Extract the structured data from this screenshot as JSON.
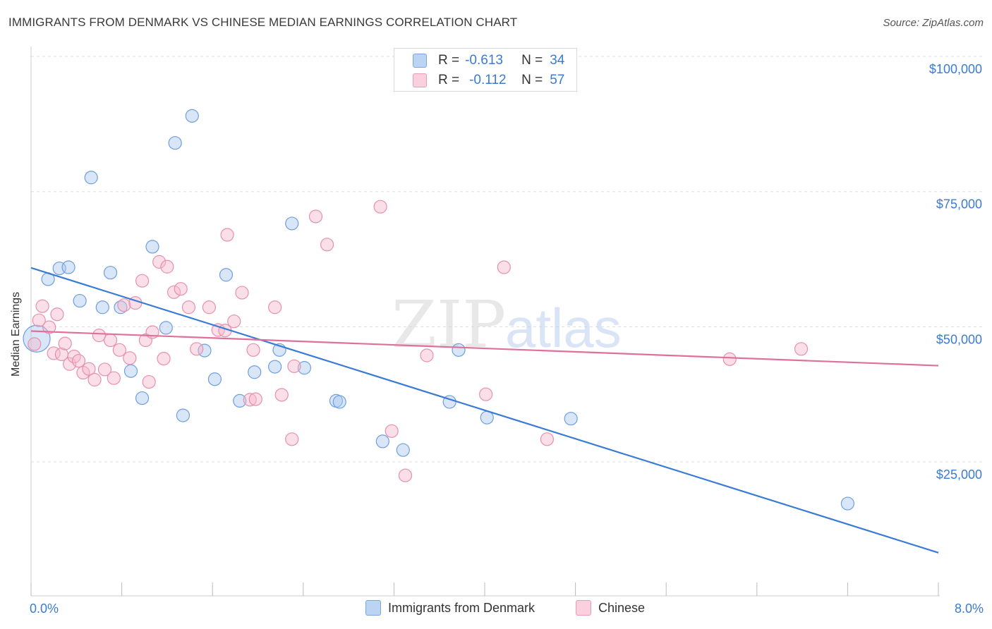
{
  "title": "IMMIGRANTS FROM DENMARK VS CHINESE MEDIAN EARNINGS CORRELATION CHART",
  "source": "Source: ZipAtlas.com",
  "colors": {
    "blue": "#3a7bd5",
    "pink": "#e0709a",
    "blue_fill": "#a9c8f0",
    "pink_fill": "#f7b8cc",
    "axis_label": "#3a7bd5"
  },
  "legend_top": {
    "rows": [
      {
        "r_label": "R =",
        "r_value": "-0.613",
        "n_label": "N =",
        "n_value": "34"
      },
      {
        "r_label": "R =",
        "r_value": "-0.112",
        "n_label": "N =",
        "n_value": "57"
      }
    ]
  },
  "legend_bottom": [
    "Immigrants from Denmark",
    "Chinese"
  ],
  "watermark": "ZIPatlas",
  "chart_data": {
    "type": "scatter",
    "title": "IMMIGRANTS FROM DENMARK VS CHINESE MEDIAN EARNINGS CORRELATION CHART",
    "xlabel": "",
    "ylabel": "Median Earnings",
    "xlim": [
      0,
      8
    ],
    "ylim": [
      0,
      105000
    ],
    "x_tick_labels": [
      "0.0%",
      "8.0%"
    ],
    "y_ticks": [
      25000,
      50000,
      75000,
      100000
    ],
    "y_tick_labels": [
      "$25,000",
      "$50,000",
      "$75,000",
      "$100,000"
    ],
    "grid": true,
    "legend": "bottom",
    "series": [
      {
        "name": "Immigrants from Denmark",
        "color": "#3a7bd5",
        "trend": {
          "x": [
            0.0,
            8.0
          ],
          "y": [
            60900,
            8200
          ]
        },
        "points": [
          [
            0.05,
            47800
          ],
          [
            0.15,
            58800
          ],
          [
            0.25,
            60800
          ],
          [
            0.33,
            61000
          ],
          [
            0.43,
            54800
          ],
          [
            0.53,
            77600
          ],
          [
            0.63,
            53600
          ],
          [
            0.7,
            60000
          ],
          [
            0.79,
            53600
          ],
          [
            0.88,
            41800
          ],
          [
            0.98,
            36800
          ],
          [
            1.07,
            64800
          ],
          [
            1.19,
            49800
          ],
          [
            1.27,
            84000
          ],
          [
            1.34,
            33600
          ],
          [
            1.42,
            89000
          ],
          [
            1.53,
            45600
          ],
          [
            1.62,
            40300
          ],
          [
            1.72,
            59600
          ],
          [
            1.84,
            36300
          ],
          [
            1.97,
            41600
          ],
          [
            2.15,
            42600
          ],
          [
            2.19,
            45700
          ],
          [
            2.3,
            69100
          ],
          [
            2.41,
            42400
          ],
          [
            2.69,
            36300
          ],
          [
            2.72,
            36100
          ],
          [
            3.1,
            28800
          ],
          [
            3.28,
            27200
          ],
          [
            3.69,
            36100
          ],
          [
            3.77,
            45700
          ],
          [
            4.02,
            33200
          ],
          [
            4.76,
            33000
          ],
          [
            7.2,
            17300
          ]
        ]
      },
      {
        "name": "Chinese",
        "color": "#e0709a",
        "trend": {
          "x": [
            0.0,
            8.0
          ],
          "y": [
            49200,
            42800
          ]
        },
        "points": [
          [
            0.03,
            46800
          ],
          [
            0.07,
            51200
          ],
          [
            0.1,
            53800
          ],
          [
            0.16,
            49900
          ],
          [
            0.2,
            45100
          ],
          [
            0.23,
            52300
          ],
          [
            0.27,
            44900
          ],
          [
            0.3,
            46900
          ],
          [
            0.34,
            43100
          ],
          [
            0.38,
            44500
          ],
          [
            0.42,
            43700
          ],
          [
            0.46,
            41500
          ],
          [
            0.51,
            42200
          ],
          [
            0.56,
            40200
          ],
          [
            0.6,
            48400
          ],
          [
            0.65,
            42100
          ],
          [
            0.7,
            47500
          ],
          [
            0.73,
            40500
          ],
          [
            0.78,
            45700
          ],
          [
            0.82,
            54000
          ],
          [
            0.87,
            44200
          ],
          [
            0.92,
            54400
          ],
          [
            0.98,
            58500
          ],
          [
            1.01,
            47500
          ],
          [
            1.04,
            39800
          ],
          [
            1.07,
            49000
          ],
          [
            1.13,
            62000
          ],
          [
            1.17,
            44100
          ],
          [
            1.2,
            61100
          ],
          [
            1.26,
            56400
          ],
          [
            1.32,
            57000
          ],
          [
            1.39,
            53600
          ],
          [
            1.46,
            45900
          ],
          [
            1.57,
            53600
          ],
          [
            1.65,
            49400
          ],
          [
            1.71,
            49300
          ],
          [
            1.73,
            67000
          ],
          [
            1.79,
            51000
          ],
          [
            1.86,
            56300
          ],
          [
            1.93,
            36500
          ],
          [
            1.98,
            36600
          ],
          [
            1.96,
            45700
          ],
          [
            2.15,
            53600
          ],
          [
            2.21,
            37400
          ],
          [
            2.3,
            29200
          ],
          [
            2.32,
            42700
          ],
          [
            2.51,
            70400
          ],
          [
            2.61,
            65200
          ],
          [
            3.08,
            72200
          ],
          [
            3.18,
            30700
          ],
          [
            3.3,
            22500
          ],
          [
            3.49,
            44700
          ],
          [
            4.01,
            37500
          ],
          [
            4.17,
            61000
          ],
          [
            4.55,
            29200
          ],
          [
            6.16,
            44000
          ],
          [
            6.79,
            45900
          ]
        ]
      }
    ]
  }
}
